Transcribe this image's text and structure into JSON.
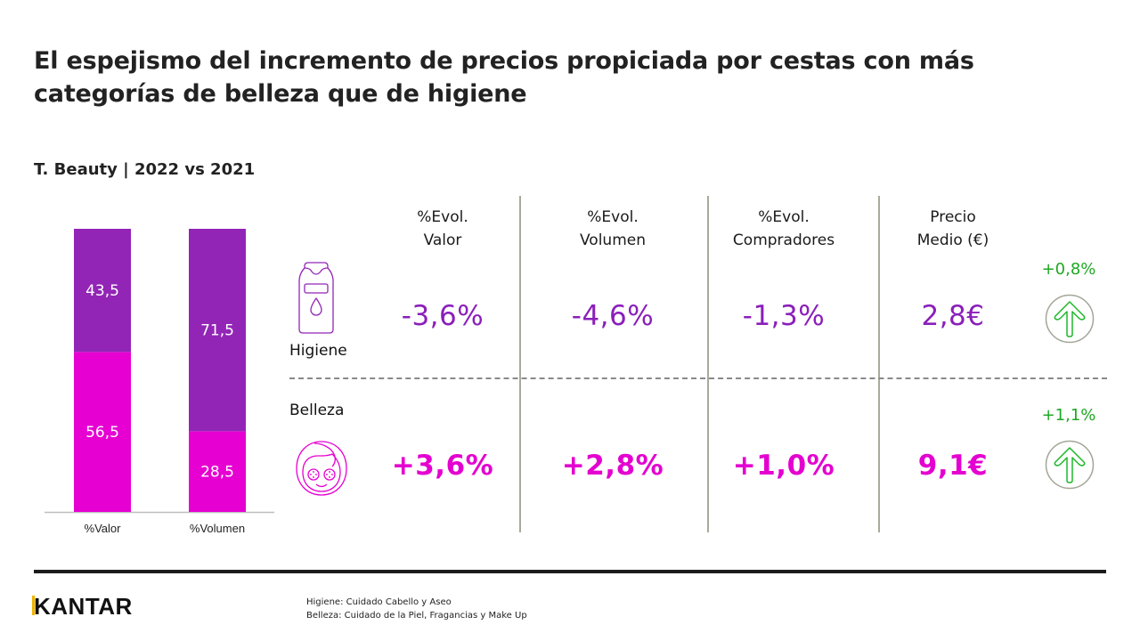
{
  "title": "El espejismo del incremento de precios propiciada por cestas con más categorías de belleza que de higiene",
  "subtitle": "T. Beauty | 2022 vs 2021",
  "colors": {
    "higiene": "#9225b6",
    "belleza": "#e600d2",
    "positive": "#1fa824",
    "divider": "#a9aa9b"
  },
  "chart_data": {
    "type": "bar",
    "stacked": true,
    "categories": [
      "%Valor",
      "%Volumen"
    ],
    "series": [
      {
        "name": "Belleza",
        "values": [
          56.5,
          28.5
        ],
        "labels": [
          "56,5",
          "28,5"
        ],
        "color": "#e600d2"
      },
      {
        "name": "Higiene",
        "values": [
          43.5,
          71.5
        ],
        "labels": [
          "43,5",
          "71,5"
        ],
        "color": "#9225b6"
      }
    ],
    "ylim": [
      0,
      100
    ],
    "title": "",
    "xlabel": "",
    "ylabel": "",
    "grid": false,
    "legend": "none"
  },
  "table": {
    "headers": [
      {
        "line1": "%Evol.",
        "line2": "Valor"
      },
      {
        "line1": "%Evol.",
        "line2": "Volumen"
      },
      {
        "line1": "%Evol.",
        "line2": "Compradores"
      },
      {
        "line1": "Precio",
        "line2": "Medio (€)"
      }
    ],
    "rows": [
      {
        "label": "Higiene",
        "icon": "shampoo-bottle-icon",
        "values": [
          "-3,6%",
          "-4,6%",
          "-1,3%",
          "2,8€"
        ],
        "price_change": "+0,8%",
        "trend": "up"
      },
      {
        "label": "Belleza",
        "icon": "face-mask-icon",
        "values": [
          "+3,6%",
          "+2,8%",
          "+1,0%",
          "9,1€"
        ],
        "price_change": "+1,1%",
        "trend": "up"
      }
    ]
  },
  "footer": {
    "logo": "KANTAR",
    "notes": [
      "Higiene: Cuidado Cabello y Aseo",
      "Belleza: Cuidado de la Piel, Fragancias y Make Up"
    ]
  }
}
